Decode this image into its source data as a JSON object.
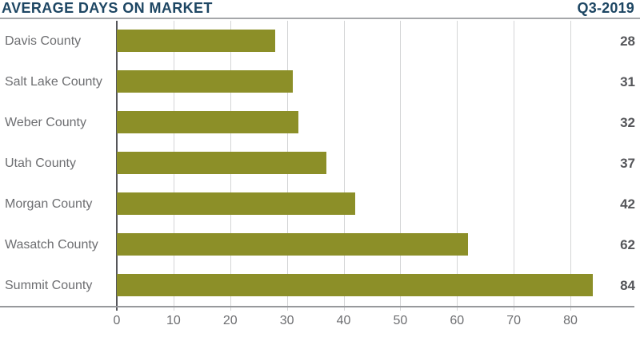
{
  "header": {
    "title": "AVERAGE DAYS ON MARKET",
    "period": "Q3-2019"
  },
  "chart_data": {
    "type": "bar",
    "orientation": "horizontal",
    "title": "AVERAGE DAYS ON MARKET",
    "subtitle": "Q3-2019",
    "categories": [
      "Davis County",
      "Salt Lake County",
      "Weber County",
      "Utah County",
      "Morgan County",
      "Wasatch County",
      "Summit County"
    ],
    "values": [
      28,
      31,
      32,
      37,
      42,
      62,
      84
    ],
    "value_labels": [
      "28",
      "31",
      "32",
      "37",
      "42",
      "62",
      "84"
    ],
    "xlabel": "",
    "ylabel": "",
    "xlim": [
      0,
      91
    ],
    "xticks": [
      0,
      10,
      20,
      30,
      40,
      50,
      60,
      70,
      80
    ],
    "grid": true,
    "legend": "none",
    "bar_color": "#8c8f28",
    "title_color": "#1d4663",
    "label_color": "#6d6e71",
    "value_color": "#55565a",
    "gridline_color": "#d4d5d6"
  }
}
